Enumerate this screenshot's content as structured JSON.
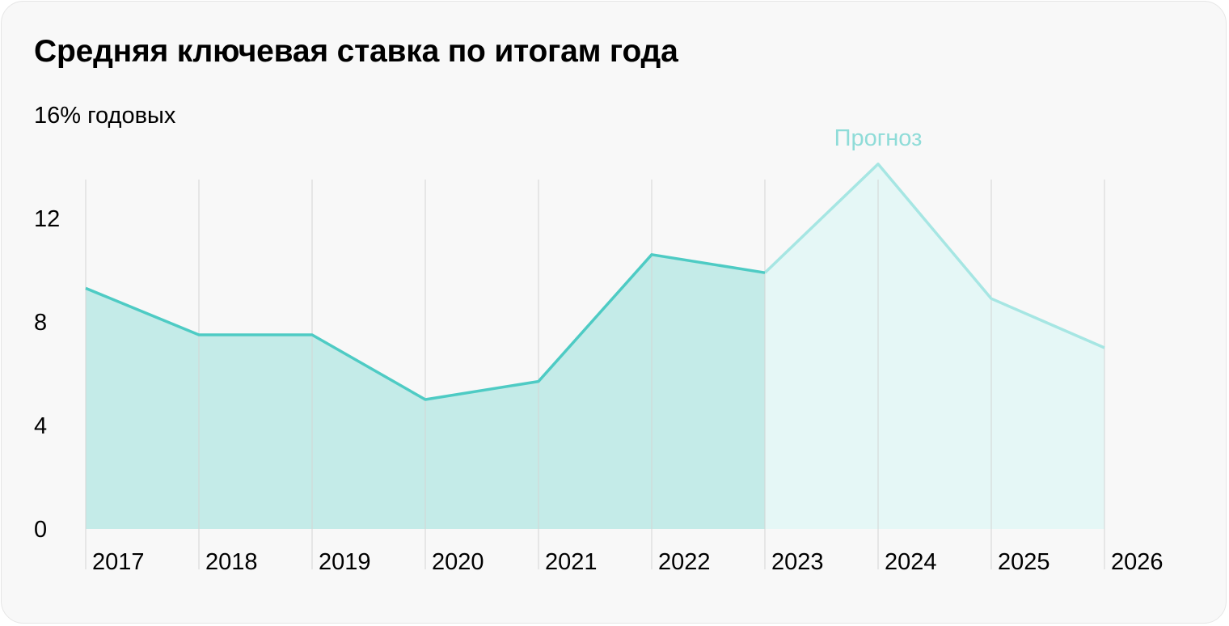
{
  "header": {
    "title": "Средняя ключевая ставка по итогам года"
  },
  "chart_data": {
    "type": "area",
    "title": "Средняя ключевая ставка по итогам года",
    "ylabel": "% годовых",
    "ylim": [
      0,
      16
    ],
    "y_ticks": [
      0,
      4,
      8,
      12,
      16
    ],
    "top_tick_label": "16% годовых",
    "grid": false,
    "categories": [
      "2017",
      "2018",
      "2019",
      "2020",
      "2021",
      "2022",
      "2023",
      "2024",
      "2025",
      "2026"
    ],
    "series": [
      {
        "kind": "actual",
        "x": [
          "2017",
          "2018",
          "2019",
          "2020",
          "2021",
          "2022",
          "2023"
        ],
        "values": [
          9.3,
          7.5,
          7.5,
          5.0,
          5.7,
          10.6,
          9.9
        ]
      },
      {
        "kind": "forecast",
        "x": [
          "2023",
          "2024",
          "2025",
          "2026"
        ],
        "values": [
          9.9,
          14.1,
          8.9,
          7.0
        ]
      }
    ],
    "annotations": [
      {
        "text": "Прогноз",
        "x": "2024"
      }
    ],
    "colors": {
      "actual_line": "#4ecbc4",
      "actual_fill": "#c4ebe8",
      "forecast_line": "#a6e6e3",
      "forecast_fill": "#e5f7f6",
      "forecast_text": "#8fdcd8",
      "divider": "#d4d4d4"
    }
  }
}
